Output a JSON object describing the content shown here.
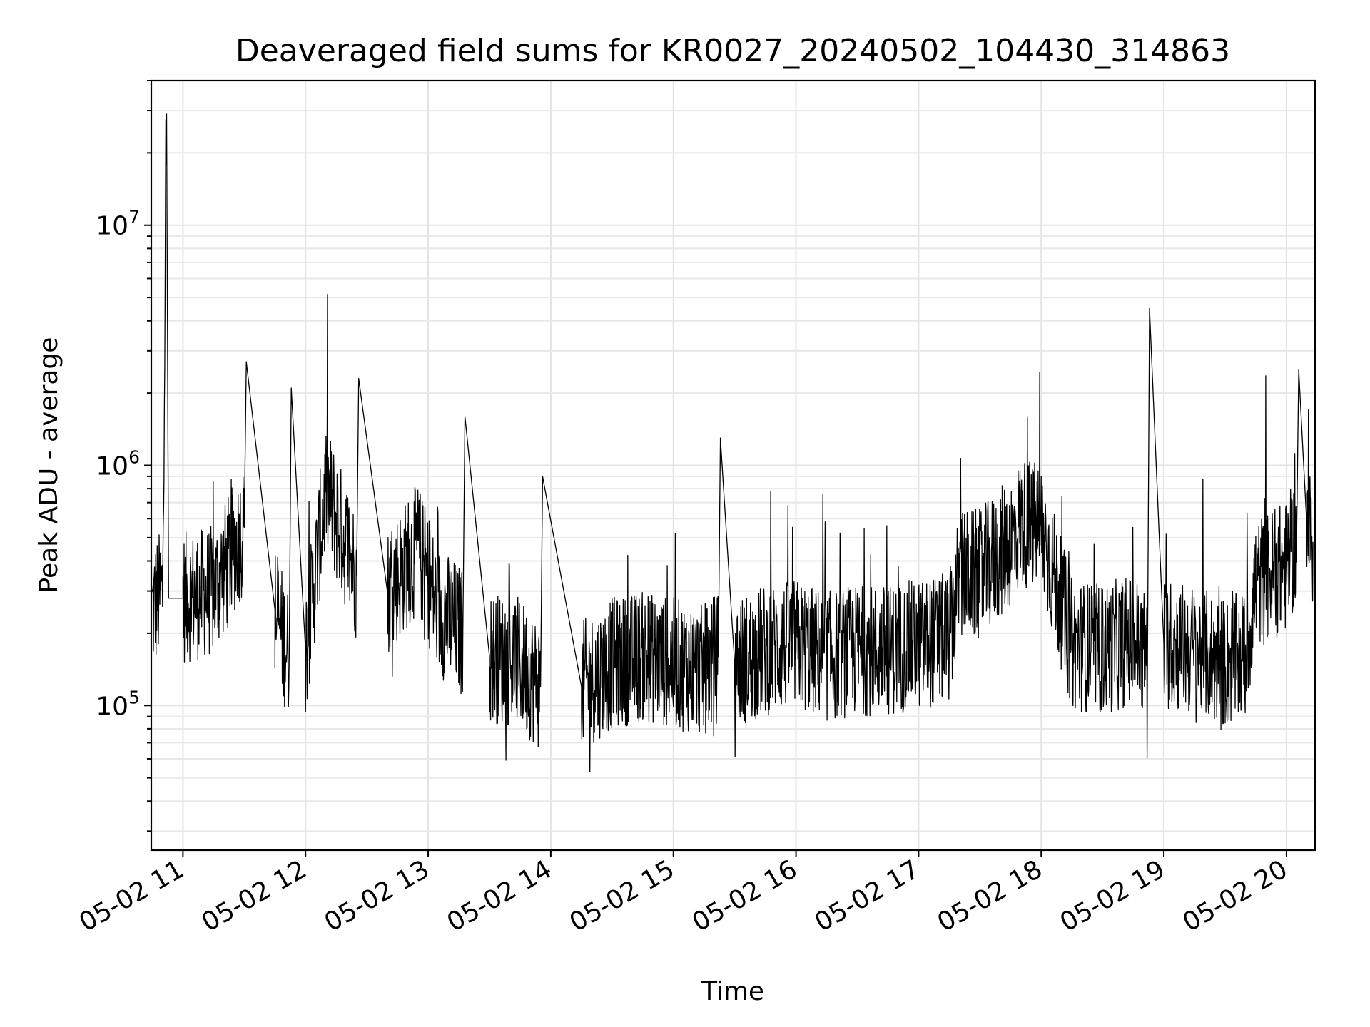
{
  "chart_data": {
    "type": "line",
    "title": "Deaveraged field sums for KR0027_20240502_104430_314863",
    "xlabel": "Time",
    "ylabel": "Peak ADU - average",
    "yscale": "log",
    "ylim": [
      25000,
      40000000
    ],
    "xlim": [
      "2024-05-02 10:44:30",
      "2024-05-02 20:14:00"
    ],
    "grid": true,
    "x_ticks": [
      {
        "t": "2024-05-02 11:00",
        "label": "05-02 11"
      },
      {
        "t": "2024-05-02 12:00",
        "label": "05-02 12"
      },
      {
        "t": "2024-05-02 13:00",
        "label": "05-02 13"
      },
      {
        "t": "2024-05-02 14:00",
        "label": "05-02 14"
      },
      {
        "t": "2024-05-02 15:00",
        "label": "05-02 15"
      },
      {
        "t": "2024-05-02 16:00",
        "label": "05-02 16"
      },
      {
        "t": "2024-05-02 17:00",
        "label": "05-02 17"
      },
      {
        "t": "2024-05-02 18:00",
        "label": "05-02 18"
      },
      {
        "t": "2024-05-02 19:00",
        "label": "05-02 19"
      },
      {
        "t": "2024-05-02 20:00",
        "label": "05-02 20"
      }
    ],
    "y_ticks": [
      {
        "value": 100000,
        "base": "10",
        "exp": "5"
      },
      {
        "value": 1000000,
        "base": "10",
        "exp": "6"
      },
      {
        "value": 10000000,
        "base": "10",
        "exp": "7"
      }
    ],
    "series": [
      {
        "color": "#000000",
        "x": [
          "2024-05-02 10:45",
          "2024-05-02 10:50",
          "2024-05-02 10:52",
          "2024-05-02 10:53",
          "2024-05-02 11:00",
          "2024-05-02 11:15",
          "2024-05-02 11:30",
          "2024-05-02 11:31",
          "2024-05-02 11:45",
          "2024-05-02 11:52",
          "2024-05-02 11:53",
          "2024-05-02 12:00",
          "2024-05-02 12:10",
          "2024-05-02 12:25",
          "2024-05-02 12:26",
          "2024-05-02 12:40",
          "2024-05-02 12:55",
          "2024-05-02 13:05",
          "2024-05-02 13:17",
          "2024-05-02 13:18",
          "2024-05-02 13:30",
          "2024-05-02 13:45",
          "2024-05-02 13:55",
          "2024-05-02 13:56",
          "2024-05-02 14:15",
          "2024-05-02 14:30",
          "2024-05-02 14:45",
          "2024-05-02 15:00",
          "2024-05-02 15:15",
          "2024-05-02 15:22",
          "2024-05-02 15:23",
          "2024-05-02 15:30",
          "2024-05-02 15:45",
          "2024-05-02 16:00",
          "2024-05-02 16:15",
          "2024-05-02 16:30",
          "2024-05-02 16:45",
          "2024-05-02 17:00",
          "2024-05-02 17:15",
          "2024-05-02 17:20",
          "2024-05-02 17:30",
          "2024-05-02 17:45",
          "2024-05-02 17:50",
          "2024-05-02 18:00",
          "2024-05-02 18:15",
          "2024-05-02 18:30",
          "2024-05-02 18:45",
          "2024-05-02 18:52",
          "2024-05-02 18:53",
          "2024-05-02 19:00",
          "2024-05-02 19:15",
          "2024-05-02 19:30",
          "2024-05-02 19:40",
          "2024-05-02 19:45",
          "2024-05-02 20:00",
          "2024-05-02 20:05",
          "2024-05-02 20:06",
          "2024-05-02 20:10",
          "2024-05-02 20:13"
        ],
        "y": [
          250000,
          300000,
          29000000,
          280000,
          280000,
          300000,
          550000,
          2700000,
          250000,
          160000,
          2100000,
          170000,
          800000,
          350000,
          2300000,
          300000,
          450000,
          250000,
          200000,
          1600000,
          160000,
          150000,
          120000,
          900000,
          120000,
          150000,
          160000,
          150000,
          140000,
          160000,
          1300000,
          150000,
          170000,
          180000,
          160000,
          170000,
          170000,
          180000,
          190000,
          350000,
          350000,
          480000,
          580000,
          550000,
          180000,
          170000,
          190000,
          160000,
          4500000,
          180000,
          170000,
          150000,
          160000,
          320000,
          380000,
          500000,
          2500000,
          560000,
          480000
        ]
      }
    ]
  }
}
